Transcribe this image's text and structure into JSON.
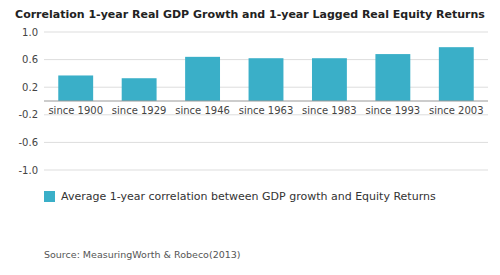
{
  "chart_data": {
    "type": "bar",
    "title": "Correlation 1-year Real GDP Growth and 1-year Lagged Real Equity Returns",
    "categories": [
      "since 1900",
      "since 1929",
      "since 1946",
      "since 1963",
      "since 1983",
      "since 1993",
      "since 2003"
    ],
    "series": [
      {
        "name": "Average 1-year correlation between GDP growth and Equity Returns",
        "color": "#3aafc8",
        "values": [
          0.37,
          0.33,
          0.64,
          0.62,
          0.62,
          0.68,
          0.78
        ]
      }
    ],
    "ylim": [
      -1.0,
      1.0
    ],
    "yticks": [
      {
        "value": -1.0,
        "label": "-1.0"
      },
      -0.6,
      -0.2,
      0.2,
      0.6,
      {
        "value": 1.0,
        "label": "1.0"
      }
    ],
    "grid": true,
    "legend": "bottom",
    "annotations": [
      "Source: MeasuringWorth & Robeco(2013)"
    ]
  }
}
